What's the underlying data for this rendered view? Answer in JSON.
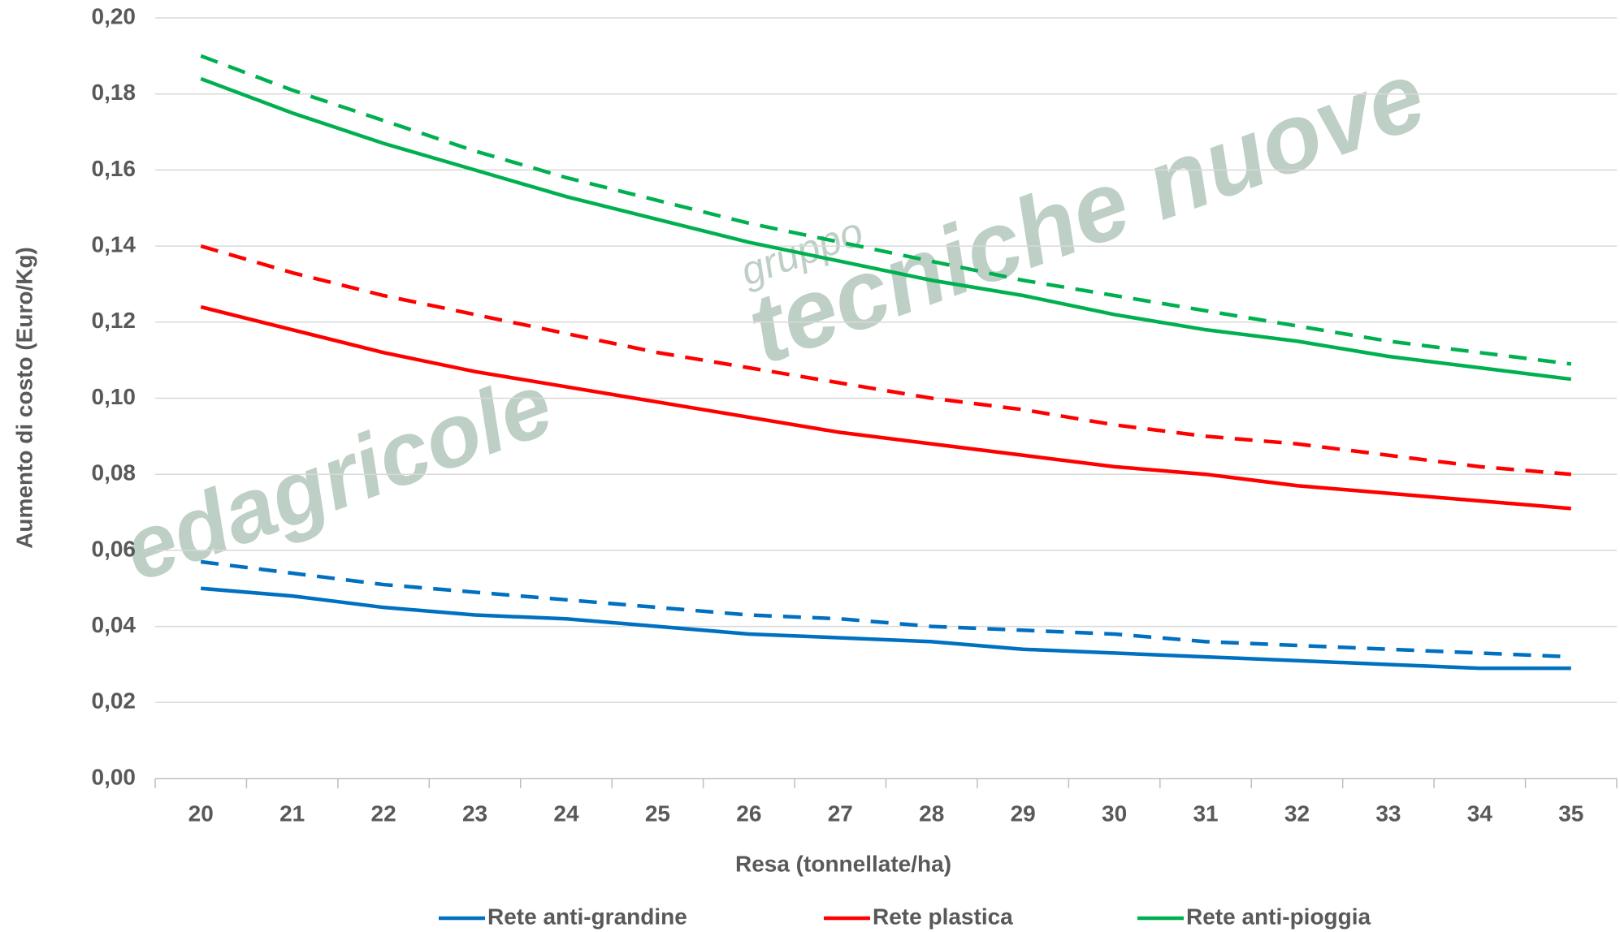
{
  "chart_data": {
    "type": "line",
    "y_label": "Aumento di costo (Euro/Kg)",
    "x_label": "Resa (tonnellate/ha)",
    "watermark": [
      "edagricole",
      "gruppo",
      "tecniche nuove"
    ],
    "categories": [
      "20",
      "21",
      "22",
      "23",
      "24",
      "25",
      "26",
      "27",
      "28",
      "29",
      "30",
      "31",
      "32",
      "33",
      "34",
      "35"
    ],
    "series": [
      {
        "name": "Rete anti-grandine",
        "color": "#0070c0",
        "dashed": false,
        "values": [
          0.05,
          0.048,
          0.045,
          0.043,
          0.042,
          0.04,
          0.038,
          0.037,
          0.036,
          0.034,
          0.033,
          0.032,
          0.031,
          0.03,
          0.029,
          0.029
        ]
      },
      {
        "name": "Rete plastica",
        "color": "#ff0000",
        "dashed": false,
        "values": [
          0.124,
          0.118,
          0.112,
          0.107,
          0.103,
          0.099,
          0.095,
          0.091,
          0.088,
          0.085,
          0.082,
          0.08,
          0.077,
          0.075,
          0.073,
          0.071
        ]
      },
      {
        "name": "Rete anti-pioggia",
        "color": "#00b050",
        "dashed": false,
        "values": [
          0.184,
          0.175,
          0.167,
          0.16,
          0.153,
          0.147,
          0.141,
          0.136,
          0.131,
          0.127,
          0.122,
          0.118,
          0.115,
          0.111,
          0.108,
          0.105
        ]
      },
      {
        "color": "#0070c0",
        "dashed": true,
        "values": [
          0.057,
          0.054,
          0.051,
          0.049,
          0.047,
          0.045,
          0.043,
          0.042,
          0.04,
          0.039,
          0.038,
          0.036,
          0.035,
          0.034,
          0.033,
          0.032
        ]
      },
      {
        "color": "#ff0000",
        "dashed": true,
        "values": [
          0.14,
          0.133,
          0.127,
          0.122,
          0.117,
          0.112,
          0.108,
          0.104,
          0.1,
          0.097,
          0.093,
          0.09,
          0.088,
          0.085,
          0.082,
          0.08
        ]
      },
      {
        "color": "#00b050",
        "dashed": true,
        "values": [
          0.19,
          0.181,
          0.173,
          0.165,
          0.158,
          0.152,
          0.146,
          0.141,
          0.136,
          0.131,
          0.127,
          0.123,
          0.119,
          0.115,
          0.112,
          0.109
        ]
      }
    ],
    "ylim": [
      0,
      0.2
    ],
    "yticks": [
      {
        "value": 0,
        "label": "0,00"
      },
      {
        "value": 0.02,
        "label": "0,02"
      },
      {
        "value": 0.04,
        "label": "0,04"
      },
      {
        "value": 0.06,
        "label": "0,06"
      },
      {
        "value": 0.08,
        "label": "0,08"
      },
      {
        "value": 0.1,
        "label": "0,10"
      },
      {
        "value": 0.12,
        "label": "0,12"
      },
      {
        "value": 0.14,
        "label": "0,14"
      },
      {
        "value": 0.16,
        "label": "0,16"
      },
      {
        "value": 0.18,
        "label": "0,18"
      },
      {
        "value": 0.2,
        "label": "0,20"
      }
    ],
    "grid": true,
    "legend": "bottom"
  }
}
